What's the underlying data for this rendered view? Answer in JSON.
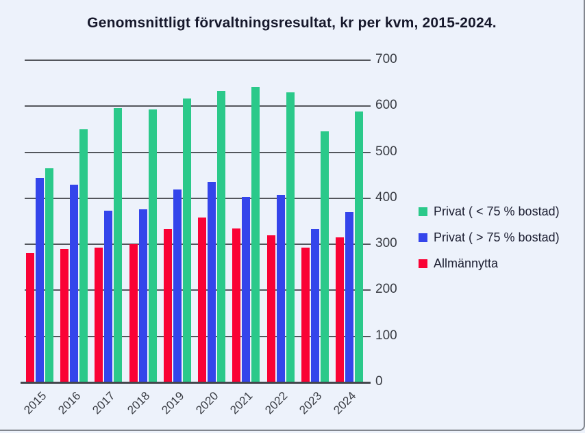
{
  "title": "Genomsnittligt förvaltningsresultat, kr per kvm, 2015-2024.",
  "colors": {
    "background": "#edf2fb",
    "grid": "#53565c",
    "axis": "#43464c",
    "tick_text": "#393c43",
    "title_text": "#16182b",
    "legend_text": "#1b1d30",
    "border": "#82868e"
  },
  "chart_data": {
    "type": "bar",
    "title": "Genomsnittligt förvaltningsresultat, kr per kvm, 2015-2024.",
    "categories": [
      "2015",
      "2016",
      "2017",
      "2018",
      "2019",
      "2020",
      "2021",
      "2022",
      "2023",
      "2024"
    ],
    "series": [
      {
        "name": "Privat ( < 75 % bostad)",
        "color": "#2bc98a",
        "values": [
          464,
          548,
          595,
          592,
          615,
          631,
          641,
          629,
          544,
          587
        ]
      },
      {
        "name": "Privat ( > 75 % bostad)",
        "color": "#3445eb",
        "values": [
          443,
          428,
          372,
          374,
          417,
          434,
          402,
          405,
          331,
          368
        ]
      },
      {
        "name": "Allmännytta",
        "color": "#fa0235",
        "values": [
          280,
          289,
          291,
          298,
          331,
          357,
          333,
          318,
          292,
          313
        ]
      }
    ],
    "group_draw_order_left_to_right": [
      "Allmännytta",
      "Privat ( > 75 % bostad)",
      "Privat ( < 75 % bostad)"
    ],
    "ylim": [
      0,
      700
    ],
    "ytick_interval": 100,
    "yticks": [
      "700",
      "600",
      "500",
      "400",
      "300",
      "200",
      "100",
      "0"
    ],
    "xlabel": "",
    "ylabel": "",
    "grid": true,
    "legend_position": "right"
  }
}
